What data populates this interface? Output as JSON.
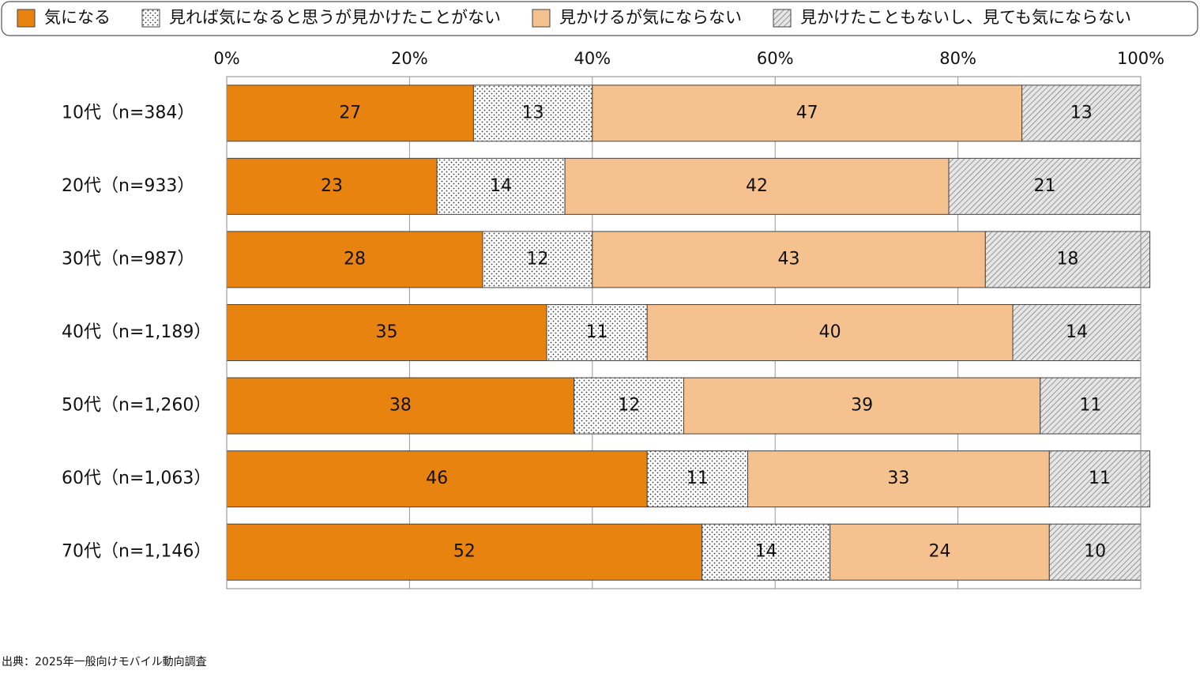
{
  "chart_data": {
    "type": "stacked-bar-horizontal",
    "categories": [
      "10代（n=384）",
      "20代（n=933）",
      "30代（n=987）",
      "40代（n=1,189）",
      "50代（n=1,260）",
      "60代（n=1,063）",
      "70代（n=1,146）"
    ],
    "series": [
      {
        "name": "気になる",
        "color": "#e8830f",
        "pattern": "solid",
        "values": [
          27,
          23,
          28,
          35,
          38,
          46,
          52
        ]
      },
      {
        "name": "見れば気になると思うが見かけたことがない",
        "color": "#ffffff",
        "pattern": "dots",
        "values": [
          13,
          14,
          12,
          11,
          12,
          11,
          14
        ]
      },
      {
        "name": "見かけるが気にならない",
        "color": "#f5c18e",
        "pattern": "solid",
        "values": [
          47,
          42,
          43,
          40,
          39,
          33,
          24
        ]
      },
      {
        "name": "見かけたこともないし、見ても気にならない",
        "color": "#e6e6e6",
        "pattern": "hatch",
        "values": [
          13,
          21,
          18,
          14,
          11,
          11,
          10
        ]
      }
    ],
    "xlim": [
      0,
      100
    ],
    "xticks": [
      {
        "value": 0,
        "label": "0%"
      },
      {
        "value": 20,
        "label": "20%"
      },
      {
        "value": 40,
        "label": "40%"
      },
      {
        "value": 60,
        "label": "60%"
      },
      {
        "value": 80,
        "label": "80%"
      },
      {
        "value": 100,
        "label": "100%"
      }
    ],
    "grid": true,
    "legend": "top",
    "source": "出典：2025年一般向けモバイル動向調査"
  }
}
